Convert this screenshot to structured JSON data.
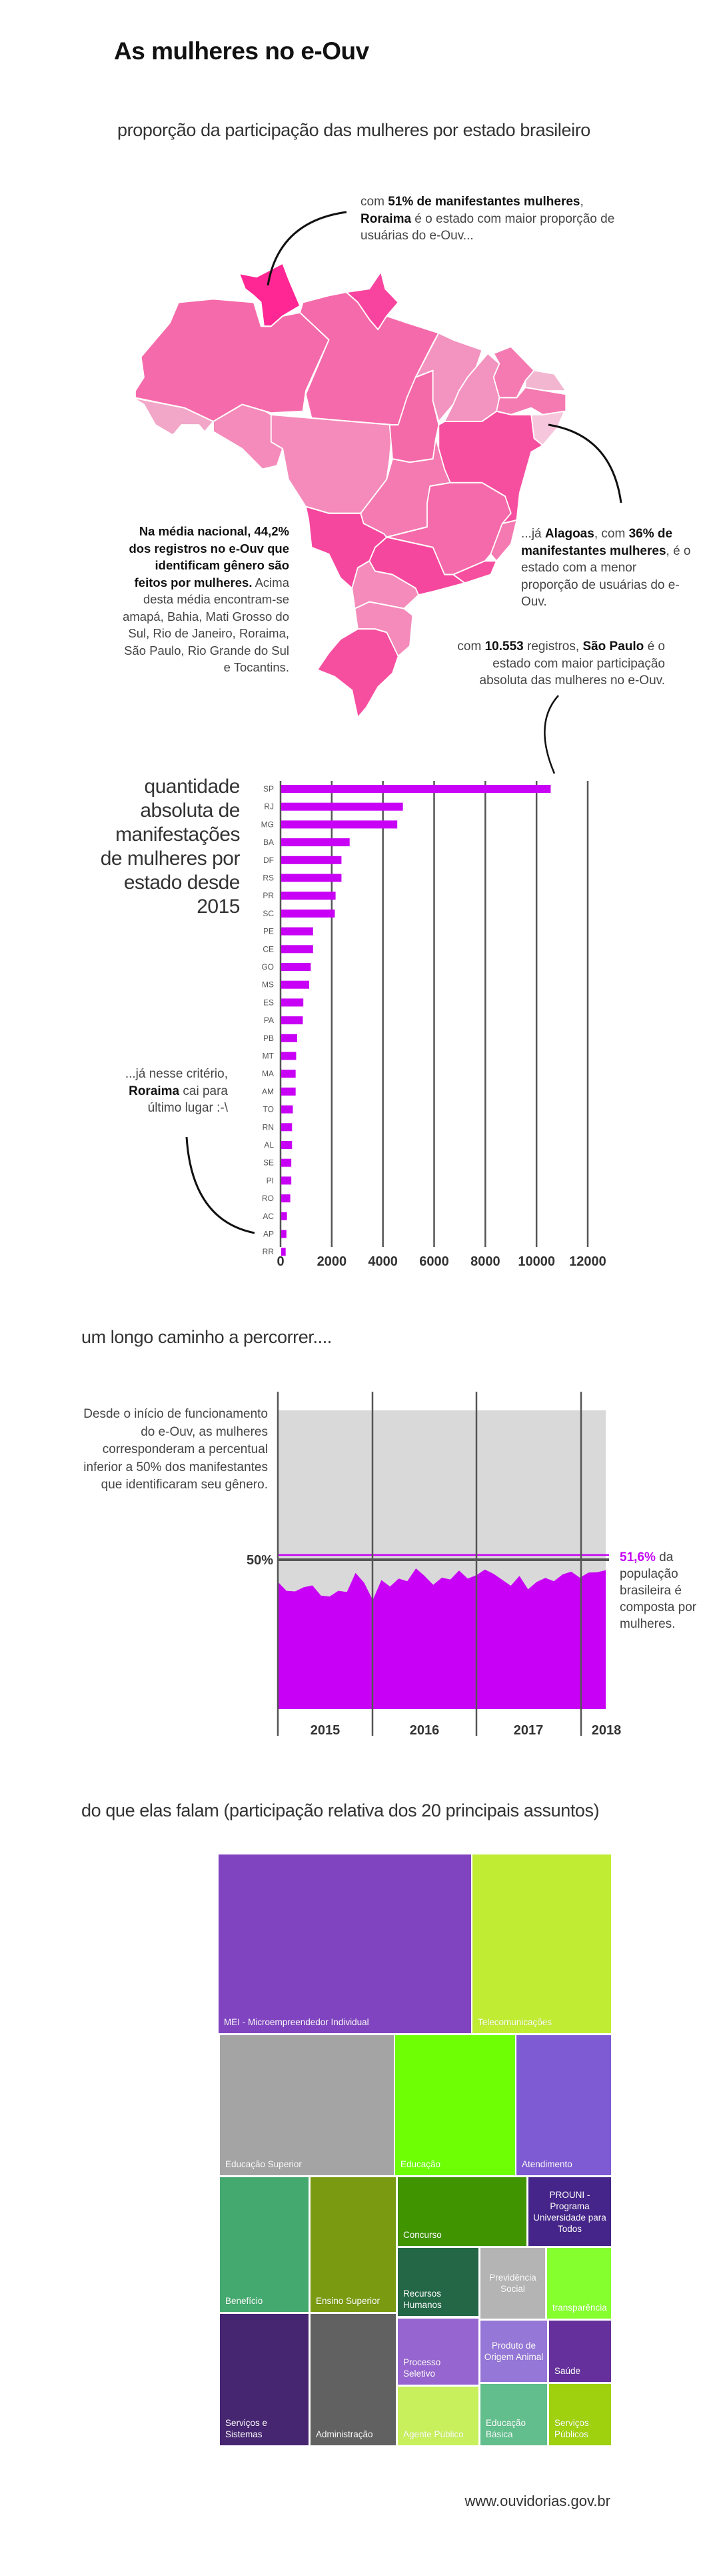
{
  "header": {
    "title": "As mulheres no e-Ouv",
    "subtitle": "proporção da participação das mulheres por estado brasileiro"
  },
  "map": {
    "colors": {
      "RR": "#ff2793",
      "AP": "#f8449f",
      "AM": "#f56aaa",
      "PA": "#f56aaa",
      "AC": "#f2a6c8",
      "RO": "#f48bbb",
      "MT": "#f48bbb",
      "TO": "#f46aa9",
      "MA": "#f393c0",
      "PI": "#f393c0",
      "CE": "#f57ab2",
      "RN": "#f3b6d1",
      "PE": "#f57ab2",
      "AL": "#f6c6dc",
      "BA": "#f74fa0",
      "GO": "#f57ab2",
      "MG": "#f56aaa",
      "ES": "#f57ab2",
      "RJ": "#f74fa0",
      "SP": "#f6479e",
      "MS": "#f6479e",
      "PR": "#f48bbb",
      "SC": "#f48bbb",
      "RS": "#f74fa0"
    },
    "roraima_note": {
      "t1": "com ",
      "b1": "51% de manifestantes mulheres",
      "t2": ", ",
      "b2": "Roraima",
      "t3": " é o estado com maior proporção de usuárias do e-Ouv..."
    },
    "national_note": {
      "b1": "Na média nacional, 44,2% dos registros no e-Ouv que identificam gênero são feitos por mulheres.",
      "t1": " Acima desta média encontram-se amapá, Bahia, Mati Grosso do Sul, Rio de Janeiro, Roraima, São Paulo, Rio Grande do Sul e Tocantins."
    },
    "alagoas_note": {
      "t1": "...já ",
      "b1": "Alagoas",
      "t2": ", com ",
      "b2": "36% de manifestantes mulheres",
      "t3": ", é o estado com a menor proporção de usuárias do e-Ouv."
    },
    "sp_note": {
      "t1": "com ",
      "b1": "10.553",
      "t2": " registros, ",
      "b2": "São Paulo",
      "t3": " é o estado com maior participação absoluta das mulheres no e-Ouv."
    }
  },
  "bar_section": {
    "title": "quantidade absoluta de manifestações de mulheres por estado desde 2015",
    "rr_note": {
      "t1": "...já nesse critério, ",
      "b1": "Roraima",
      "t2": " cai para último lugar :-\\"
    }
  },
  "path_section": {
    "heading": "um longo caminho a percorrer....",
    "left_note": "Desde o início de funcionamento do e-Ouv, as mulheres corresponderam a percentual inferior a 50% dos manifestantes que identificaram seu gênero.",
    "right_note": {
      "b1": "51,6%",
      "t1": " da população brasileira é composta por mulheres."
    }
  },
  "topics_section": {
    "heading": "do que elas falam (participação relativa dos 20 principais assuntos)"
  },
  "footer": {
    "url": "www.ouvidorias.gov.br"
  },
  "chart_data": [
    {
      "type": "bar",
      "orientation": "horizontal",
      "categories": [
        "SP",
        "RJ",
        "MG",
        "BA",
        "DF",
        "RS",
        "PR",
        "SC",
        "PE",
        "CE",
        "GO",
        "MS",
        "ES",
        "PA",
        "PB",
        "MT",
        "MA",
        "AM",
        "TO",
        "RN",
        "AL",
        "SE",
        "PI",
        "RO",
        "AC",
        "AP",
        "RR"
      ],
      "values": [
        10553,
        4780,
        4560,
        2700,
        2380,
        2380,
        2150,
        2120,
        1270,
        1270,
        1180,
        1120,
        890,
        870,
        650,
        610,
        590,
        590,
        480,
        450,
        450,
        420,
        420,
        380,
        250,
        230,
        200
      ],
      "xlim": [
        0,
        12000
      ],
      "xticks": [
        "0",
        "2000",
        "4000",
        "6000",
        "8000",
        "10000",
        "12000"
      ],
      "grid": true,
      "bar_color": "#c800f5",
      "title": "quantidade absoluta de manifestações de mulheres por estado desde 2015"
    },
    {
      "type": "area",
      "year_labels": [
        "2015",
        "2016",
        "2017",
        "2018"
      ],
      "values": [
        42.6,
        39.6,
        39.4,
        40.8,
        41.4,
        38.0,
        37.7,
        39.6,
        39.2,
        45.6,
        42.3,
        36.5,
        43.2,
        41.0,
        43.7,
        42.8,
        47.1,
        44.6,
        41.6,
        44.0,
        43.4,
        46.4,
        43.7,
        44.8,
        46.7,
        45.3,
        43.3,
        41.3,
        44.6,
        40.1,
        42.6,
        43.9,
        42.8,
        45.1,
        46.0,
        44.0,
        45.7,
        45.8,
        46.5
      ],
      "ylim": [
        0,
        100
      ],
      "reference_lines": [
        {
          "value": 50,
          "label": "50%",
          "color": "#555555"
        },
        {
          "value": 51.6,
          "color": "#c800f5"
        }
      ],
      "fill_color": "#c800f5",
      "background_color": "#d9d9d9"
    },
    {
      "type": "treemap",
      "title": "do que elas falam (participação relativa dos 20 principais assuntos)",
      "items": [
        {
          "label": "MEI - Microempreendedor Individual",
          "value": 20.0,
          "color": "#8044c0"
        },
        {
          "label": "Telecomunicações",
          "value": 11.0,
          "color": "#c0ec34"
        },
        {
          "label": "Educação Superior",
          "value": 10.9,
          "color": "#a4a4a4"
        },
        {
          "label": "Educação",
          "value": 7.4,
          "color": "#6eff04"
        },
        {
          "label": "Atendimento",
          "value": 5.8,
          "color": "#7e5bd3"
        },
        {
          "label": "Benefício",
          "value": 5.3,
          "color": "#44a96f"
        },
        {
          "label": "Ensino Superior",
          "value": 5.1,
          "color": "#7a9b11"
        },
        {
          "label": "Concurso",
          "value": 4.0,
          "color": "#3f9400"
        },
        {
          "label": "PROUNI - Programa Universidade para Todos",
          "value": 2.6,
          "color": "#452589"
        },
        {
          "label": "Recursos Humanos",
          "value": 2.4,
          "color": "#236746"
        },
        {
          "label": "Previdência Social",
          "value": 2.0,
          "color": "#b4b4b4"
        },
        {
          "label": "transparência",
          "value": 2.0,
          "color": "#86ff2e"
        },
        {
          "label": "Serviços e Sistemas",
          "value": 5.1,
          "color": "#462571"
        },
        {
          "label": "Administração",
          "value": 4.9,
          "color": "#616161"
        },
        {
          "label": "Processo Seletivo",
          "value": 2.3,
          "color": "#9765cf"
        },
        {
          "label": "Produto de Origem Animal",
          "value": 1.8,
          "color": "#9577d7"
        },
        {
          "label": "Saúde",
          "value": 1.6,
          "color": "#65309c"
        },
        {
          "label": "Agente Público",
          "value": 2.1,
          "color": "#c8f05c"
        },
        {
          "label": "Educação Básica",
          "value": 1.8,
          "color": "#62be8c"
        },
        {
          "label": "Serviços Públicos",
          "value": 1.7,
          "color": "#9fd10f"
        }
      ]
    }
  ]
}
